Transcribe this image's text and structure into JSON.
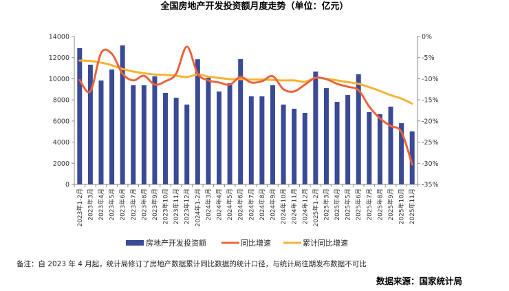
{
  "chart_data": {
    "type": "bar+line",
    "title": "全国房地产开发投资额月度走势（单位：亿元）",
    "categories": [
      "2023年1-2月",
      "2023年3月",
      "2023年4月",
      "2023年5月",
      "2023年6月",
      "2023年7月",
      "2023年8月",
      "2023年9月",
      "2023年10月",
      "2023年11月",
      "2023年12月",
      "2024年1-2月",
      "2024年3月",
      "2024年4月",
      "2024年5月",
      "2024年6月",
      "2024年7月",
      "2024年8月",
      "2024年9月",
      "2024年10月",
      "2024年11月",
      "2024年12月",
      "2025年1-2月",
      "2025年3月",
      "2025年4月",
      "2025年5月",
      "2025年6月",
      "2025年7月",
      "2025年8月",
      "2025年9月",
      "2025年10月",
      "2025年11月"
    ],
    "left_axis": {
      "ylim": [
        0,
        14000
      ],
      "ticks": [
        "0",
        "2000",
        "4000",
        "6000",
        "8000",
        "10000",
        "12000",
        "14000"
      ]
    },
    "right_axis": {
      "ylim": [
        -35,
        0
      ],
      "ticks": [
        "-35%",
        "-30%",
        "-25%",
        "-20%",
        "-15%",
        "-10%",
        "-5%",
        "0%"
      ]
    },
    "series": [
      {
        "name": "房地产开发投资额",
        "kind": "bar",
        "axis": "left",
        "color": "#3b4a94",
        "values": [
          12900,
          11330,
          9830,
          10870,
          13150,
          9380,
          9380,
          10220,
          8660,
          8200,
          7550,
          11840,
          10090,
          8790,
          9570,
          11850,
          8330,
          8330,
          9380,
          7550,
          7160,
          6770,
          10680,
          9110,
          7810,
          8460,
          10420,
          6840,
          6640,
          7360,
          5790,
          5010
        ]
      },
      {
        "name": "同比增速",
        "kind": "line",
        "axis": "right",
        "color": "#e9643d",
        "values": [
          -10.3,
          -13.0,
          -3.9,
          -4.1,
          -8.8,
          -10.4,
          -9.3,
          -11.4,
          -10.6,
          -8.8,
          -2.4,
          -8.8,
          -10.4,
          -10.9,
          -11.4,
          -9.6,
          -10.9,
          -10.6,
          -9.4,
          -12.5,
          -13.0,
          -11.4,
          -9.8,
          -10.1,
          -11.2,
          -11.9,
          -12.7,
          -16.6,
          -19.4,
          -21.2,
          -22.6,
          -30.3
        ]
      },
      {
        "name": "累计同比增速",
        "kind": "line",
        "axis": "right",
        "color": "#f4b431",
        "values": [
          -5.7,
          -5.8,
          -6.2,
          -6.8,
          -7.7,
          -8.3,
          -8.7,
          -9.0,
          -9.1,
          -9.3,
          -9.6,
          -9.0,
          -9.5,
          -9.8,
          -10.1,
          -10.1,
          -10.2,
          -10.2,
          -10.3,
          -10.4,
          -10.4,
          -10.7,
          -9.8,
          -10.0,
          -10.4,
          -10.8,
          -11.2,
          -12.0,
          -12.9,
          -13.9,
          -14.7,
          -15.9
        ]
      }
    ],
    "legend": "bottom",
    "grid": false
  },
  "footnote": "备注：自 2023 年 4 月起，统计局修订了房地产数据累计同比数据的统计口径，与统计局往期发布数据不可比",
  "source": "数据来源：国家统计局"
}
